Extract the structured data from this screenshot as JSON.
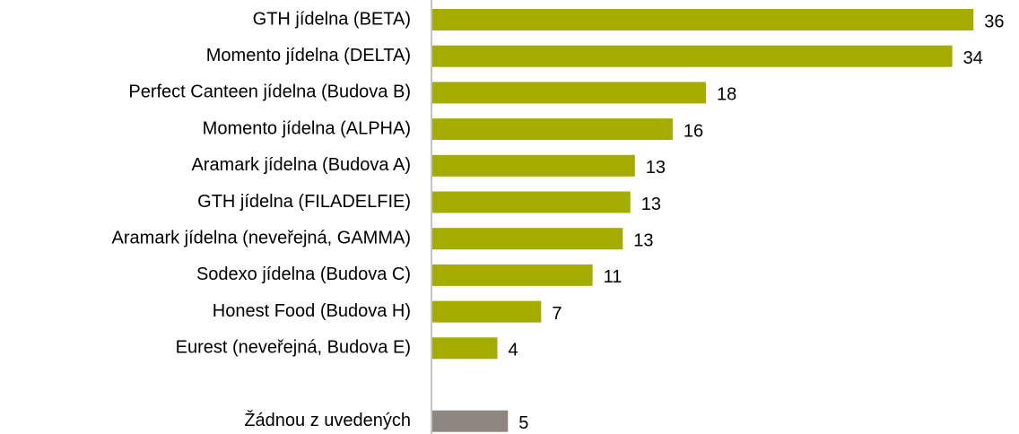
{
  "chart_data": {
    "type": "bar",
    "orientation": "horizontal",
    "categories": [
      "GTH jídelna (BETA)",
      "Momento jídelna (DELTA)",
      "Perfect Canteen jídelna (Budova B)",
      "Momento jídelna (ALPHA)",
      "Aramark jídelna (Budova A)",
      "GTH jídelna (FILADELFIE)",
      "Aramark jídelna (neveřejná, GAMMA)",
      "Sodexo jídelna (Budova C)",
      "Honest Food (Budova H)",
      "Eurest (neveřejná, Budova E)",
      "Žádnou z uvedených"
    ],
    "values": [
      35.8,
      34.4,
      18.1,
      15.9,
      13.4,
      13.1,
      12.6,
      10.6,
      7.2,
      4.3,
      5.0
    ],
    "value_labels": [
      "36",
      "34",
      "18",
      "16",
      "13",
      "13",
      "13",
      "11",
      "7",
      "4",
      "5"
    ],
    "colors": [
      "#a5ac00",
      "#a5ac00",
      "#a5ac00",
      "#a5ac00",
      "#a5ac00",
      "#a5ac00",
      "#a5ac00",
      "#a5ac00",
      "#a5ac00",
      "#a5ac00",
      "#8d8680"
    ]
  }
}
